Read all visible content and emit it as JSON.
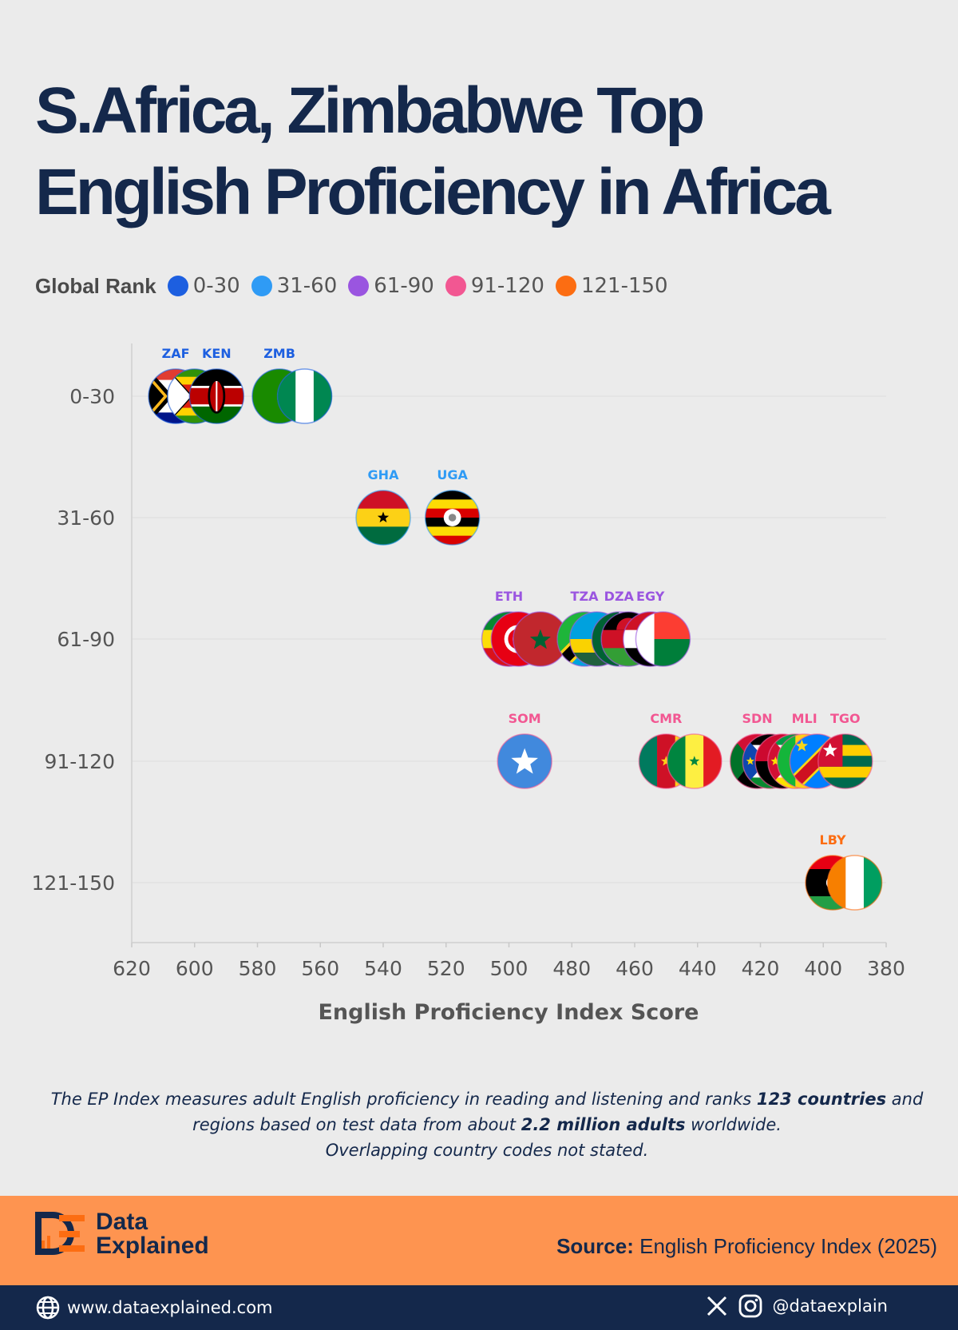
{
  "title": {
    "line1": "S.Africa, Zimbabwe Top",
    "line2": "English Proficiency in Africa"
  },
  "legend": {
    "title": "Global Rank",
    "items": [
      {
        "label": "0-30",
        "color": "#1d5fe0"
      },
      {
        "label": "31-60",
        "color": "#2f9bf5"
      },
      {
        "label": "61-90",
        "color": "#9a55e0"
      },
      {
        "label": "91-120",
        "color": "#f25792"
      },
      {
        "label": "121-150",
        "color": "#fc6d12"
      }
    ]
  },
  "chart_data": {
    "type": "scatter",
    "title": "S.Africa, Zimbabwe Top English Proficiency in Africa",
    "xlabel": "English Proficiency Index Score",
    "ylabel": "",
    "x_reversed": true,
    "xlim": [
      380,
      620
    ],
    "x_ticks": [
      620,
      600,
      580,
      560,
      540,
      520,
      500,
      480,
      460,
      440,
      420,
      400,
      380
    ],
    "categories": [
      "0-30",
      "31-60",
      "61-90",
      "91-120",
      "121-150"
    ],
    "grid": "horizontal",
    "points": [
      {
        "code": "ZAF",
        "label": "ZAF",
        "x": 606,
        "rank_band": "0-30",
        "flag": "zaf"
      },
      {
        "code": "ZWE",
        "label": "",
        "x": 600,
        "rank_band": "0-30",
        "flag": "zwe"
      },
      {
        "code": "KEN",
        "label": "KEN",
        "x": 593,
        "rank_band": "0-30",
        "flag": "ken"
      },
      {
        "code": "ZMB",
        "label": "ZMB",
        "x": 573,
        "rank_band": "0-30",
        "flag": "zmb"
      },
      {
        "code": "NGA",
        "label": "",
        "x": 565,
        "rank_band": "0-30",
        "flag": "nga"
      },
      {
        "code": "GHA",
        "label": "GHA",
        "x": 540,
        "rank_band": "31-60",
        "flag": "gha"
      },
      {
        "code": "UGA",
        "label": "UGA",
        "x": 518,
        "rank_band": "31-60",
        "flag": "uga"
      },
      {
        "code": "ETH",
        "label": "ETH",
        "x": 500,
        "rank_band": "61-90",
        "flag": "eth"
      },
      {
        "code": "TUN",
        "label": "",
        "x": 497,
        "rank_band": "61-90",
        "flag": "tun"
      },
      {
        "code": "MAR",
        "label": "",
        "x": 490,
        "rank_band": "61-90",
        "flag": "mar"
      },
      {
        "code": "TZA",
        "label": "TZA",
        "x": 476,
        "rank_band": "61-90",
        "flag": "tza"
      },
      {
        "code": "RWA",
        "label": "",
        "x": 472,
        "rank_band": "61-90",
        "flag": "rwa"
      },
      {
        "code": "DZA",
        "label": "DZA",
        "x": 465,
        "rank_band": "61-90",
        "flag": "dza"
      },
      {
        "code": "MWI",
        "label": "",
        "x": 462,
        "rank_band": "61-90",
        "flag": "mwi"
      },
      {
        "code": "EGY",
        "label": "EGY",
        "x": 455,
        "rank_band": "61-90",
        "flag": "egy"
      },
      {
        "code": "MDG",
        "label": "",
        "x": 451,
        "rank_band": "61-90",
        "flag": "mdg"
      },
      {
        "code": "SOM",
        "label": "SOM",
        "x": 495,
        "rank_band": "91-120",
        "flag": "som"
      },
      {
        "code": "CMR",
        "label": "CMR",
        "x": 450,
        "rank_band": "91-120",
        "flag": "cmr"
      },
      {
        "code": "SEN",
        "label": "",
        "x": 441,
        "rank_band": "91-120",
        "flag": "sen"
      },
      {
        "code": "SDN",
        "label": "SDN",
        "x": 421,
        "rank_band": "91-120",
        "flag": "sdn"
      },
      {
        "code": "SSD",
        "label": "",
        "x": 417,
        "rank_band": "91-120",
        "flag": "ssd"
      },
      {
        "code": "AGO",
        "label": "",
        "x": 413,
        "rank_band": "91-120",
        "flag": "ago"
      },
      {
        "code": "MOZ",
        "label": "",
        "x": 409,
        "rank_band": "91-120",
        "flag": "moz"
      },
      {
        "code": "MLI",
        "label": "MLI",
        "x": 406,
        "rank_band": "91-120",
        "flag": "mli"
      },
      {
        "code": "COD",
        "label": "",
        "x": 402,
        "rank_band": "91-120",
        "flag": "cod"
      },
      {
        "code": "TGO",
        "label": "TGO",
        "x": 393,
        "rank_band": "91-120",
        "flag": "tgo"
      },
      {
        "code": "LBY",
        "label": "LBY",
        "x": 397,
        "rank_band": "121-150",
        "flag": "lby"
      },
      {
        "code": "CIV",
        "label": "",
        "x": 390,
        "rank_band": "121-150",
        "flag": "civ"
      }
    ]
  },
  "note": {
    "p1": "The EP Index measures adult English proficiency in reading and listening and ranks ",
    "b1": "123 countries",
    "p2": " and regions based on test data from about ",
    "b2": "2.2 million adults",
    "p3": " worldwide.",
    "p4": "Overlapping country codes not stated."
  },
  "footer": {
    "brand_line1": "Data",
    "brand_line2": "Explained",
    "source_label": "Source:",
    "source_text": "English Proficiency Index (2025)",
    "website": "www.dataexplained.com",
    "handle": "@dataexplain"
  },
  "colors": {
    "navy": "#14284b",
    "orange_band": "#fe9450",
    "background": "#ebebeb"
  }
}
